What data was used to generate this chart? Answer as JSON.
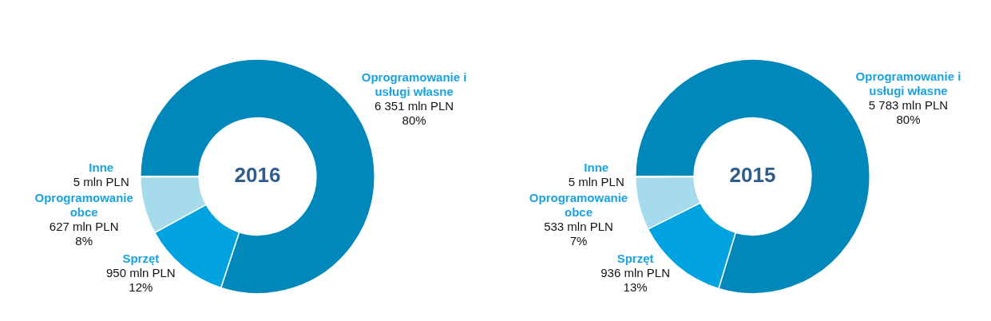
{
  "chart_data": [
    {
      "type": "donut",
      "title": "2016",
      "categories": [
        "Oprogramowanie i usługi własne",
        "Sprzęt",
        "Oprogramowanie obce",
        "Inne"
      ],
      "values": [
        6351,
        950,
        627,
        5
      ],
      "colors": [
        "#0088bb",
        "#00a3df",
        "#a5dbeb",
        "#1f6fa8"
      ],
      "value_labels": [
        "6 351 mln PLN\n80%",
        "950 mln PLN\n12%",
        "627 mln PLN\n8%",
        "5 mln PLN"
      ],
      "legend": false
    },
    {
      "type": "donut",
      "title": "2015",
      "categories": [
        "Oprogramowanie i usługi własne",
        "Sprzęt",
        "Oprogramowanie obce",
        "Inne"
      ],
      "values": [
        5783,
        936,
        533,
        5
      ],
      "colors": [
        "#0088bb",
        "#00a3df",
        "#a5dbeb",
        "#1f6fa8"
      ],
      "value_labels": [
        "5 783 mln PLN\n80%",
        "936 mln PLN\n13%",
        "533 mln PLN\n7%",
        "5 mln PLN"
      ],
      "legend": false
    }
  ]
}
